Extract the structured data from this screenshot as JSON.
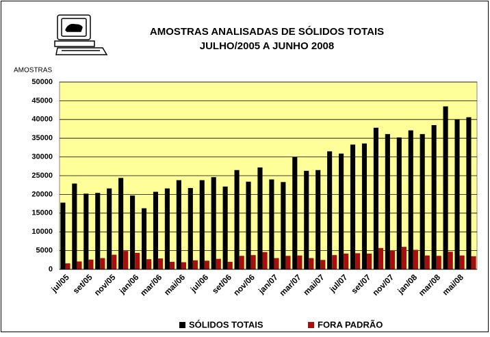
{
  "chart_data": {
    "type": "bar",
    "title": "AMOSTRAS ANALISADAS DE SÓLIDOS TOTAIS",
    "subtitle": "JULHO/2005 A JUNHO 2008",
    "y_label": "AMOSTRAS",
    "categories": [
      "jul/05",
      null,
      "set/05",
      null,
      "nov/05",
      null,
      "jan/06",
      null,
      "mar/06",
      null,
      "mai/06",
      null,
      "jul/06",
      null,
      "set/06",
      null,
      "nov/06",
      null,
      "jan/07",
      null,
      "mar/07",
      null,
      "mai/07",
      null,
      "jul/07",
      null,
      "set/07",
      null,
      "nov/07",
      null,
      "jan/08",
      null,
      "mar/08",
      null,
      "mai/08",
      null
    ],
    "series": [
      {
        "name": "SÓLIDOS TOTAIS",
        "color": "#000000",
        "values": [
          17800,
          22900,
          20200,
          20400,
          21600,
          24400,
          19700,
          16300,
          20700,
          21600,
          23800,
          21700,
          23800,
          24600,
          22100,
          26500,
          23400,
          27200,
          24000,
          23300,
          30000,
          26300,
          26500,
          31500,
          30900,
          33300,
          33600,
          37800,
          36100,
          35200,
          37100,
          36100,
          38500,
          43500,
          40000,
          40600
        ]
      },
      {
        "name": "FORA PADRÃO",
        "color": "#a50f0f",
        "values": [
          1600,
          2100,
          2600,
          3000,
          3900,
          4900,
          4400,
          2700,
          2900,
          2000,
          1900,
          2400,
          2300,
          2800,
          2000,
          3600,
          3800,
          4600,
          3000,
          3600,
          3700,
          3000,
          2500,
          3800,
          4200,
          4300,
          4200,
          5700,
          5000,
          6000,
          5200,
          3700,
          3600,
          4700,
          3700,
          3500
        ]
      }
    ],
    "ylim": [
      0,
      50000
    ],
    "yticks": [
      0,
      5000,
      10000,
      15000,
      20000,
      25000,
      30000,
      35000,
      40000,
      45000,
      50000
    ],
    "grid": true,
    "plot_background": "#ffff99"
  }
}
